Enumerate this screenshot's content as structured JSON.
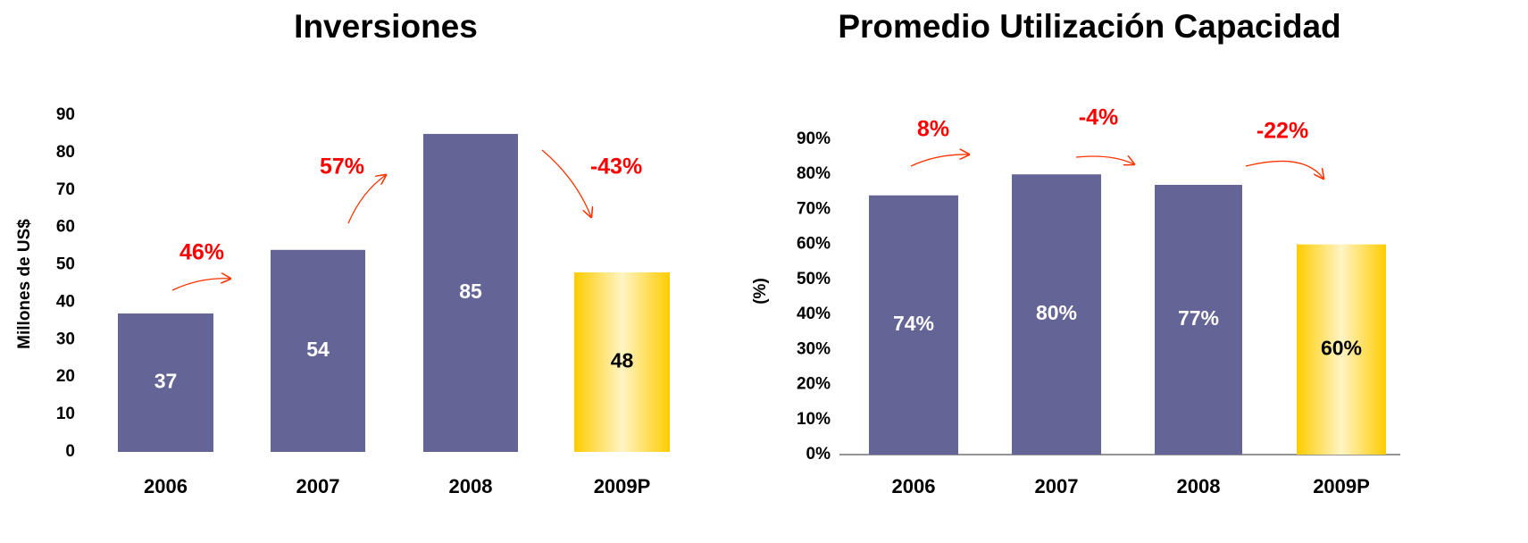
{
  "chart_data": [
    {
      "type": "bar",
      "title": "Inversiones",
      "ylabel": "Millones de US$",
      "categories": [
        "2006",
        "2007",
        "2008",
        "2009P"
      ],
      "values": [
        37,
        54,
        85,
        48
      ],
      "colors": [
        "#646496",
        "#646496",
        "#646496",
        "#ffcc00"
      ],
      "ylim": [
        0,
        90
      ],
      "yticks": [
        0,
        10,
        20,
        30,
        40,
        50,
        60,
        70,
        80,
        90
      ],
      "annotations": [
        "46%",
        "57%",
        "-43%"
      ]
    },
    {
      "type": "bar",
      "title": "Promedio Utilización Capacidad",
      "ylabel": "(%)",
      "categories": [
        "2006",
        "2007",
        "2008",
        "2009P"
      ],
      "values": [
        74,
        80,
        77,
        60
      ],
      "value_labels": [
        "74%",
        "80%",
        "77%",
        "60%"
      ],
      "colors": [
        "#646496",
        "#646496",
        "#646496",
        "#ffcc00"
      ],
      "ylim": [
        0,
        90
      ],
      "yticks": [
        {
          "value": 0,
          "label": "0%"
        },
        {
          "value": 10,
          "label": "10%"
        },
        {
          "value": 20,
          "label": "20%"
        },
        {
          "value": 30,
          "label": "30%"
        },
        {
          "value": 40,
          "label": "40%"
        },
        {
          "value": 50,
          "label": "50%"
        },
        {
          "value": 60,
          "label": "60%"
        },
        {
          "value": 70,
          "label": "70%"
        },
        {
          "value": 80,
          "label": "80%"
        },
        {
          "value": 90,
          "label": "90%"
        }
      ],
      "annotations": [
        "8%",
        "-4%",
        "-22%"
      ]
    }
  ]
}
